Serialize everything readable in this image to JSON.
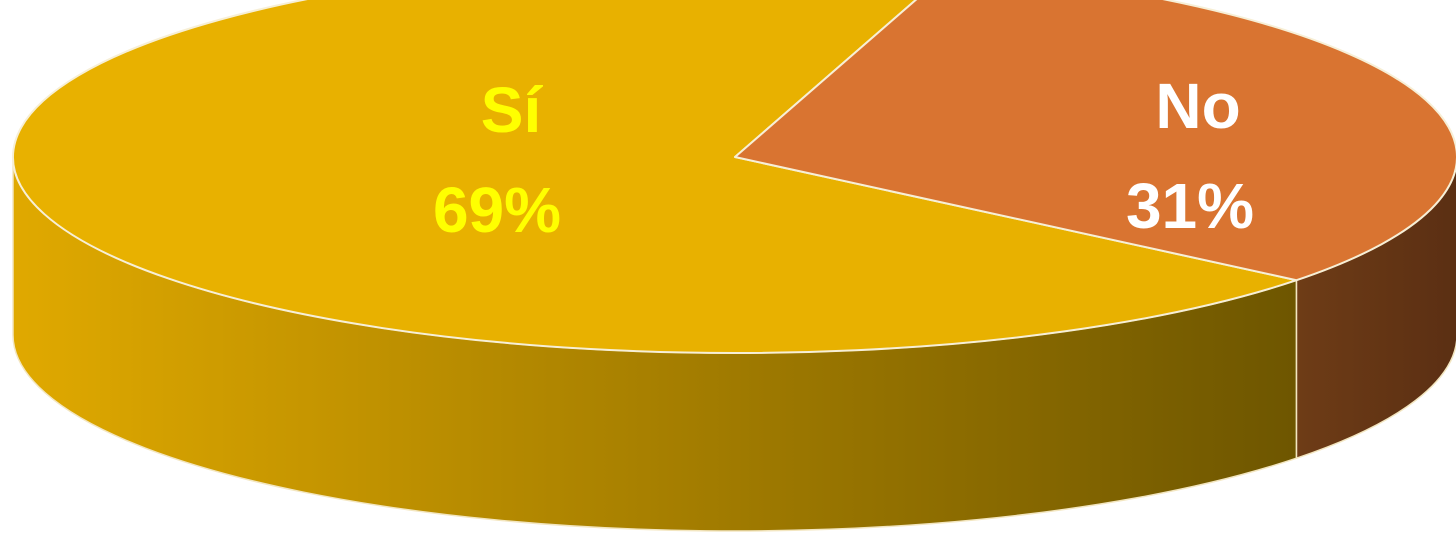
{
  "chart_data": {
    "type": "pie",
    "title": "",
    "categories": [
      "Sí",
      "No"
    ],
    "values": [
      69,
      31
    ],
    "value_labels": [
      "69%",
      "31%"
    ],
    "colors": [
      "#E8B100",
      "#D97431"
    ],
    "side_colors": {
      "Sí": [
        "#E0A900",
        "#6E5600"
      ],
      "No": [
        "#6E3C16",
        "#5B2F13"
      ]
    },
    "label_colors": [
      "#FFFF00",
      "#FFFFFF"
    ],
    "style": "3d",
    "legend": "none"
  }
}
